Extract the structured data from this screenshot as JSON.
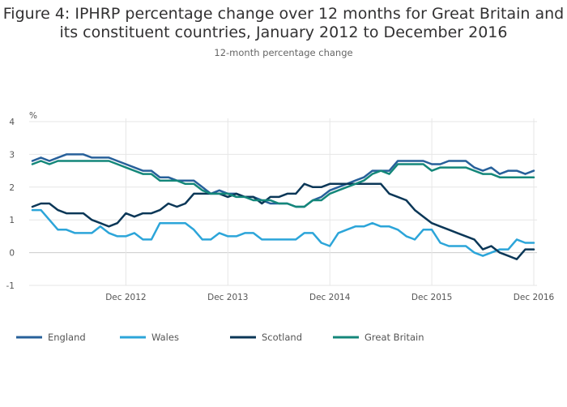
{
  "chart_data": {
    "type": "line",
    "title": "Figure 4: IPHRP percentage change over 12 months for Great Britain and its constituent countries, January 2012 to December 2016",
    "subtitle": "12-month percentage change",
    "ylabel": "%",
    "xlabel": "",
    "ylim": [
      -1,
      4
    ],
    "yticks": [
      -1,
      0,
      1,
      2,
      3,
      4
    ],
    "x_start": "2012-01",
    "x_end": "2016-12",
    "xticks": [
      {
        "month": "2012-12",
        "label": "Dec 2012"
      },
      {
        "month": "2013-12",
        "label": "Dec 2013"
      },
      {
        "month": "2014-12",
        "label": "Dec 2014"
      },
      {
        "month": "2015-12",
        "label": "Dec 2015"
      },
      {
        "month": "2016-12",
        "label": "Dec 2016"
      }
    ],
    "grid": true,
    "legend_position": "bottom",
    "series": [
      {
        "name": "England",
        "color": "#27609a",
        "values": [
          2.8,
          2.9,
          2.8,
          2.9,
          3.0,
          3.0,
          3.0,
          2.9,
          2.9,
          2.9,
          2.8,
          2.7,
          2.6,
          2.5,
          2.5,
          2.3,
          2.3,
          2.2,
          2.2,
          2.2,
          2.0,
          1.8,
          1.9,
          1.8,
          1.8,
          1.7,
          1.7,
          1.6,
          1.5,
          1.5,
          1.5,
          1.4,
          1.4,
          1.6,
          1.7,
          1.9,
          2.0,
          2.1,
          2.2,
          2.3,
          2.5,
          2.5,
          2.5,
          2.8,
          2.8,
          2.8,
          2.8,
          2.7,
          2.7,
          2.8,
          2.8,
          2.8,
          2.6,
          2.5,
          2.6,
          2.4,
          2.5,
          2.5,
          2.4,
          2.5
        ]
      },
      {
        "name": "Wales",
        "color": "#2ca5d9",
        "values": [
          1.3,
          1.3,
          1.0,
          0.7,
          0.7,
          0.6,
          0.6,
          0.6,
          0.8,
          0.6,
          0.5,
          0.5,
          0.6,
          0.4,
          0.4,
          0.9,
          0.9,
          0.9,
          0.9,
          0.7,
          0.4,
          0.4,
          0.6,
          0.5,
          0.5,
          0.6,
          0.6,
          0.4,
          0.4,
          0.4,
          0.4,
          0.4,
          0.6,
          0.6,
          0.3,
          0.2,
          0.6,
          0.7,
          0.8,
          0.8,
          0.9,
          0.8,
          0.8,
          0.7,
          0.5,
          0.4,
          0.7,
          0.7,
          0.3,
          0.2,
          0.2,
          0.2,
          0.0,
          -0.1,
          0.0,
          0.1,
          0.1,
          0.4,
          0.3,
          0.3
        ]
      },
      {
        "name": "Scotland",
        "color": "#0b3757",
        "values": [
          1.4,
          1.5,
          1.5,
          1.3,
          1.2,
          1.2,
          1.2,
          1.0,
          0.9,
          0.8,
          0.9,
          1.2,
          1.1,
          1.2,
          1.2,
          1.3,
          1.5,
          1.4,
          1.5,
          1.8,
          1.8,
          1.8,
          1.8,
          1.7,
          1.8,
          1.7,
          1.7,
          1.5,
          1.7,
          1.7,
          1.8,
          1.8,
          2.1,
          2.0,
          2.0,
          2.1,
          2.1,
          2.1,
          2.1,
          2.1,
          2.1,
          2.1,
          1.8,
          1.7,
          1.6,
          1.3,
          1.1,
          0.9,
          0.8,
          0.7,
          0.6,
          0.5,
          0.4,
          0.1,
          0.2,
          0.0,
          -0.1,
          -0.2,
          0.1,
          0.1
        ]
      },
      {
        "name": "Great Britain",
        "color": "#14877a",
        "values": [
          2.7,
          2.8,
          2.7,
          2.8,
          2.8,
          2.8,
          2.8,
          2.8,
          2.8,
          2.8,
          2.7,
          2.6,
          2.5,
          2.4,
          2.4,
          2.2,
          2.2,
          2.2,
          2.1,
          2.1,
          1.9,
          1.8,
          1.8,
          1.8,
          1.7,
          1.7,
          1.6,
          1.6,
          1.6,
          1.5,
          1.5,
          1.4,
          1.4,
          1.6,
          1.6,
          1.8,
          1.9,
          2.0,
          2.1,
          2.2,
          2.4,
          2.5,
          2.4,
          2.7,
          2.7,
          2.7,
          2.7,
          2.5,
          2.6,
          2.6,
          2.6,
          2.6,
          2.5,
          2.4,
          2.4,
          2.3,
          2.3,
          2.3,
          2.3,
          2.3
        ]
      }
    ]
  }
}
